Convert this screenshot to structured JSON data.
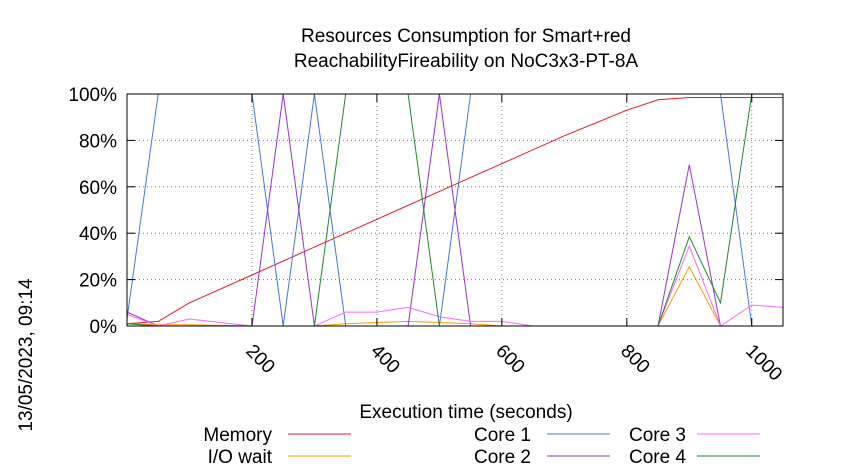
{
  "chart_data": {
    "type": "line",
    "title": [
      "Resources Consumption for Smart+red",
      "ReachabilityFireability on NoC3x3-PT-8A"
    ],
    "side_label": "13/05/2023, 09:14",
    "xlabel": "Execution time (seconds)",
    "ylabel": "",
    "xlim": [
      0,
      1050
    ],
    "ylim": [
      0,
      100
    ],
    "x_ticks": [
      200,
      400,
      600,
      800,
      1000
    ],
    "y_ticks": [
      0,
      20,
      40,
      60,
      80,
      100
    ],
    "y_tick_labels": [
      "0%",
      "20%",
      "40%",
      "60%",
      "80%",
      "100%"
    ],
    "grid": true,
    "legend_position": "bottom",
    "series": [
      {
        "name": "Memory",
        "color": "#e41a1c",
        "points": [
          [
            0,
            1
          ],
          [
            50,
            2
          ],
          [
            100,
            10
          ],
          [
            150,
            16
          ],
          [
            200,
            22
          ],
          [
            300,
            34
          ],
          [
            400,
            46
          ],
          [
            500,
            58
          ],
          [
            600,
            70
          ],
          [
            700,
            82
          ],
          [
            800,
            93
          ],
          [
            850,
            97.5
          ],
          [
            900,
            98.5
          ],
          [
            950,
            98.5
          ],
          [
            1000,
            98.5
          ],
          [
            1050,
            98.5
          ]
        ]
      },
      {
        "name": "I/O wait",
        "color": "#ff9900",
        "points": [
          [
            0,
            1
          ],
          [
            50,
            0.5
          ],
          [
            100,
            0.5
          ],
          [
            200,
            0
          ],
          [
            250,
            0
          ],
          [
            300,
            0
          ],
          [
            350,
            1
          ],
          [
            400,
            1.5
          ],
          [
            450,
            2
          ],
          [
            500,
            1.5
          ],
          [
            550,
            1
          ],
          [
            600,
            0
          ],
          [
            850,
            0
          ],
          [
            900,
            25.5
          ],
          [
            950,
            0
          ],
          [
            1000,
            0
          ]
        ]
      },
      {
        "name": "Core 1",
        "color": "#4477dd",
        "points": [
          [
            0,
            3
          ],
          [
            50,
            100
          ],
          [
            200,
            100
          ],
          [
            250,
            0
          ],
          [
            300,
            100
          ],
          [
            350,
            0
          ],
          [
            400,
            0
          ],
          [
            500,
            0
          ],
          [
            550,
            100
          ],
          [
            950,
            100
          ],
          [
            1000,
            0
          ]
        ]
      },
      {
        "name": "Core 2",
        "color": "#9933cc",
        "points": [
          [
            0,
            6
          ],
          [
            50,
            0
          ],
          [
            100,
            0
          ],
          [
            200,
            0
          ],
          [
            250,
            100
          ],
          [
            300,
            0
          ],
          [
            450,
            0
          ],
          [
            500,
            100
          ],
          [
            550,
            0
          ],
          [
            850,
            0
          ],
          [
            900,
            69.5
          ],
          [
            950,
            0
          ],
          [
            1000,
            0
          ]
        ]
      },
      {
        "name": "Core 3",
        "color": "#ff66ff",
        "points": [
          [
            0,
            5
          ],
          [
            50,
            0
          ],
          [
            100,
            3
          ],
          [
            150,
            1.5
          ],
          [
            200,
            0
          ],
          [
            250,
            0
          ],
          [
            300,
            0
          ],
          [
            350,
            6
          ],
          [
            400,
            6
          ],
          [
            450,
            8
          ],
          [
            500,
            4
          ],
          [
            550,
            2
          ],
          [
            600,
            2
          ],
          [
            650,
            0
          ],
          [
            850,
            0
          ],
          [
            900,
            34.5
          ],
          [
            950,
            0
          ],
          [
            1000,
            9
          ],
          [
            1050,
            8
          ]
        ]
      },
      {
        "name": "Core 4",
        "color": "#228833",
        "points": [
          [
            0,
            1
          ],
          [
            50,
            0
          ],
          [
            100,
            0
          ],
          [
            300,
            0
          ],
          [
            350,
            100
          ],
          [
            450,
            100
          ],
          [
            500,
            0
          ],
          [
            850,
            0
          ],
          [
            900,
            38.5
          ],
          [
            950,
            10
          ],
          [
            1000,
            100
          ],
          [
            1050,
            100
          ]
        ]
      }
    ]
  }
}
